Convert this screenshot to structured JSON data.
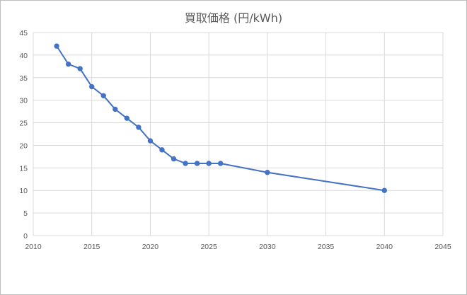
{
  "chart_data": {
    "type": "scatter",
    "title": "買取価格 (円/kWh)",
    "xlabel": "",
    "ylabel": "",
    "xlim": [
      2010,
      2045
    ],
    "ylim": [
      0,
      45
    ],
    "xticks": [
      2010,
      2015,
      2020,
      2025,
      2030,
      2035,
      2040,
      2045
    ],
    "yticks": [
      0,
      5,
      10,
      15,
      20,
      25,
      30,
      35,
      40,
      45
    ],
    "grid": true,
    "legend": "none",
    "series": [
      {
        "color": "#4472c4",
        "marker": "circle",
        "x": [
          2012,
          2013,
          2014,
          2015,
          2016,
          2017,
          2018,
          2019,
          2020,
          2021,
          2022,
          2023,
          2024,
          2025,
          2026,
          2030,
          2040
        ],
        "y": [
          42,
          38,
          37,
          33,
          31,
          28,
          26,
          24,
          21,
          19,
          17,
          16,
          16,
          16,
          16,
          14,
          10
        ]
      }
    ]
  }
}
